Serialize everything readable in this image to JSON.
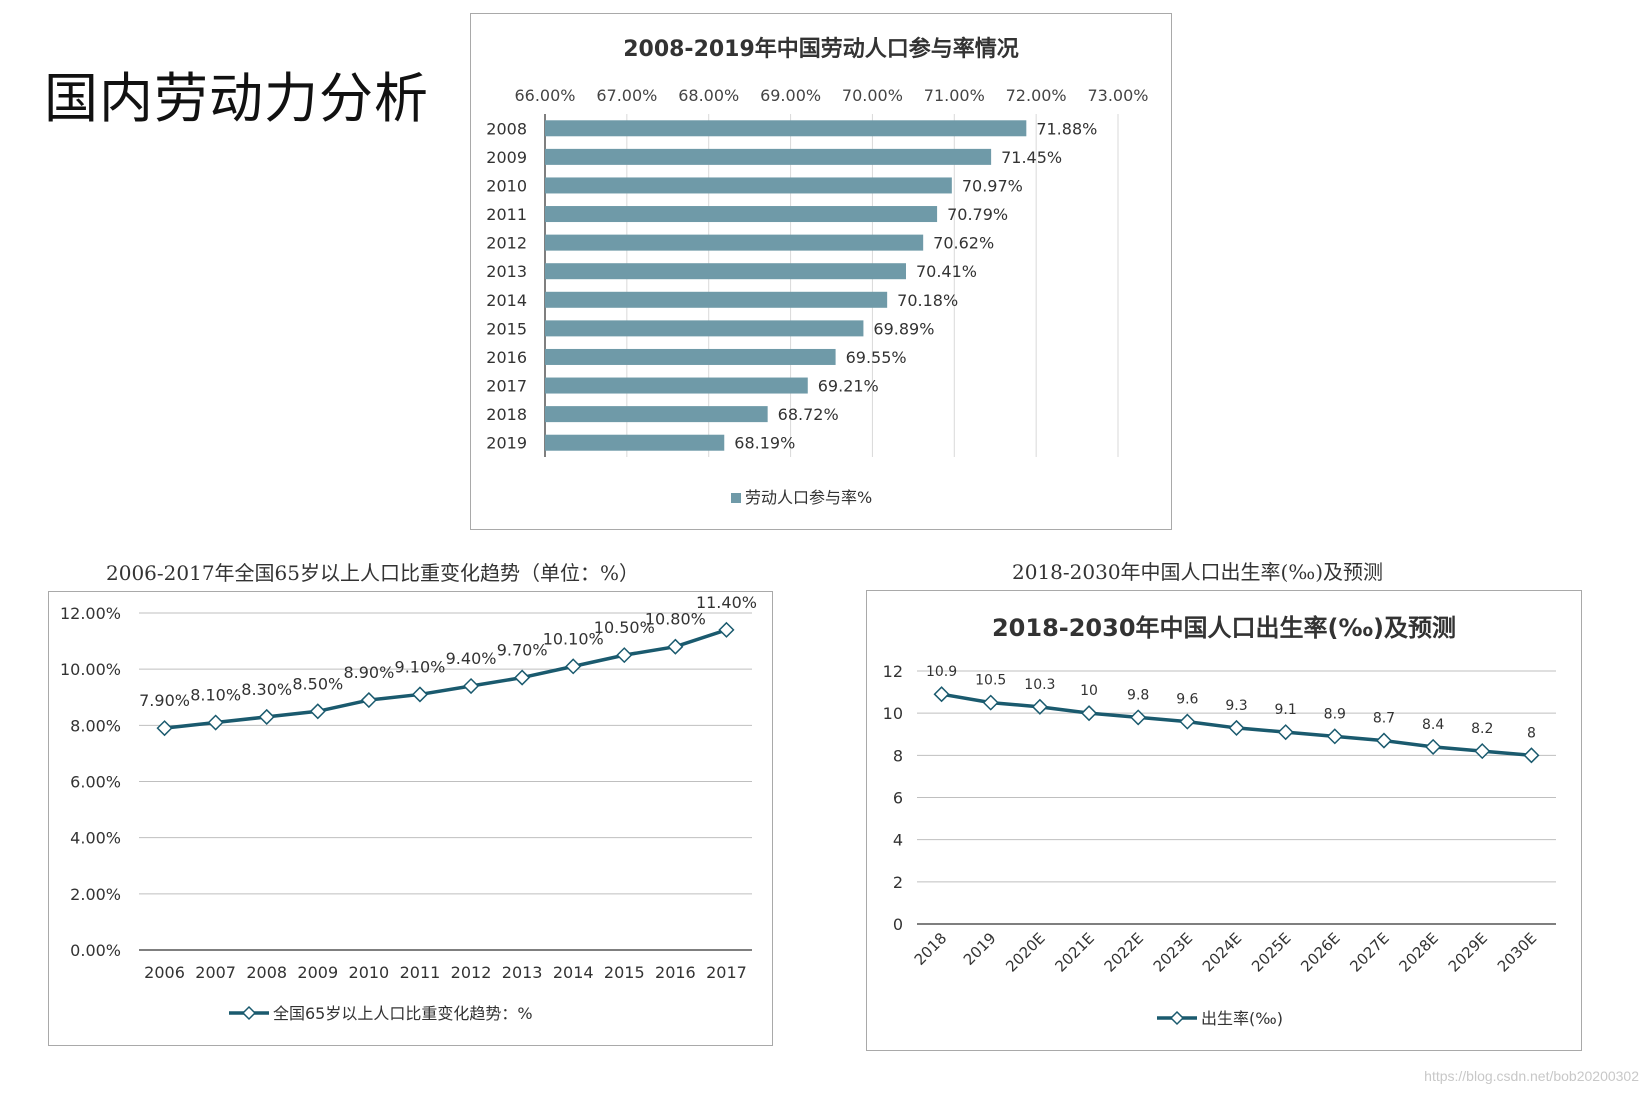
{
  "page": {
    "title": "国内劳动力分析",
    "watermark": "https://blog.csdn.net/bob20200302"
  },
  "chart_data": [
    {
      "type": "bar",
      "orientation": "horizontal",
      "title": "2008-2019年中国劳动人口参与率情况",
      "categories": [
        "2008",
        "2009",
        "2010",
        "2011",
        "2012",
        "2013",
        "2014",
        "2015",
        "2016",
        "2017",
        "2018",
        "2019"
      ],
      "series": [
        {
          "name": "劳动人口参与率%",
          "values": [
            71.88,
            71.45,
            70.97,
            70.79,
            70.62,
            70.41,
            70.18,
            69.89,
            69.55,
            69.21,
            68.72,
            68.19
          ]
        }
      ],
      "value_labels": [
        "71.88%",
        "71.45%",
        "70.97%",
        "70.79%",
        "70.62%",
        "70.41%",
        "70.18%",
        "69.89%",
        "69.55%",
        "69.21%",
        "68.72%",
        "68.19%"
      ],
      "xlim": [
        66,
        73
      ],
      "xticks": [
        "66.00%",
        "67.00%",
        "68.00%",
        "69.00%",
        "70.00%",
        "71.00%",
        "72.00%",
        "73.00%"
      ],
      "axis_position": "top",
      "grid": true,
      "legend": "bottom",
      "colors": {
        "bar": "#6f9aa8"
      }
    },
    {
      "type": "line",
      "caption": "2006-2017年全国65岁以上人口比重变化趋势（单位：%）",
      "x": [
        "2006",
        "2007",
        "2008",
        "2009",
        "2010",
        "2011",
        "2012",
        "2013",
        "2014",
        "2015",
        "2016",
        "2017"
      ],
      "series": [
        {
          "name": "全国65岁以上人口比重变化趋势：%",
          "values": [
            7.9,
            8.1,
            8.3,
            8.5,
            8.9,
            9.1,
            9.4,
            9.7,
            10.1,
            10.5,
            10.8,
            11.4
          ]
        }
      ],
      "value_labels": [
        "7.90%",
        "8.10%",
        "8.30%",
        "8.50%",
        "8.90%",
        "9.10%",
        "9.40%",
        "9.70%",
        "10.10%",
        "10.50%",
        "10.80%",
        "11.40%"
      ],
      "ylim": [
        0,
        12
      ],
      "yticks": [
        "0.00%",
        "2.00%",
        "4.00%",
        "6.00%",
        "8.00%",
        "10.00%",
        "12.00%"
      ],
      "grid": true,
      "legend": "bottom",
      "colors": {
        "line": "#1a5a6e",
        "marker_fill": "#ffffff"
      }
    },
    {
      "type": "line",
      "caption": "2018-2030年中国人口出生率(‰)及预测",
      "title": "2018-2030年中国人口出生率(‰)及预测",
      "x": [
        "2018",
        "2019",
        "2020E",
        "2021E",
        "2022E",
        "2023E",
        "2024E",
        "2025E",
        "2026E",
        "2027E",
        "2028E",
        "2029E",
        "2030E"
      ],
      "series": [
        {
          "name": "出生率(‰)",
          "values": [
            10.9,
            10.5,
            10.3,
            10,
            9.8,
            9.6,
            9.3,
            9.1,
            8.9,
            8.7,
            8.4,
            8.2,
            8
          ]
        }
      ],
      "value_labels": [
        "10.9",
        "10.5",
        "10.3",
        "10",
        "9.8",
        "9.6",
        "9.3",
        "9.1",
        "8.9",
        "8.7",
        "8.4",
        "8.2",
        "8"
      ],
      "ylim": [
        0,
        12
      ],
      "yticks": [
        "0",
        "2",
        "4",
        "6",
        "8",
        "10",
        "12"
      ],
      "grid": true,
      "legend": "bottom",
      "colors": {
        "line": "#1a5a6e",
        "marker_fill": "#ffffff"
      }
    }
  ]
}
